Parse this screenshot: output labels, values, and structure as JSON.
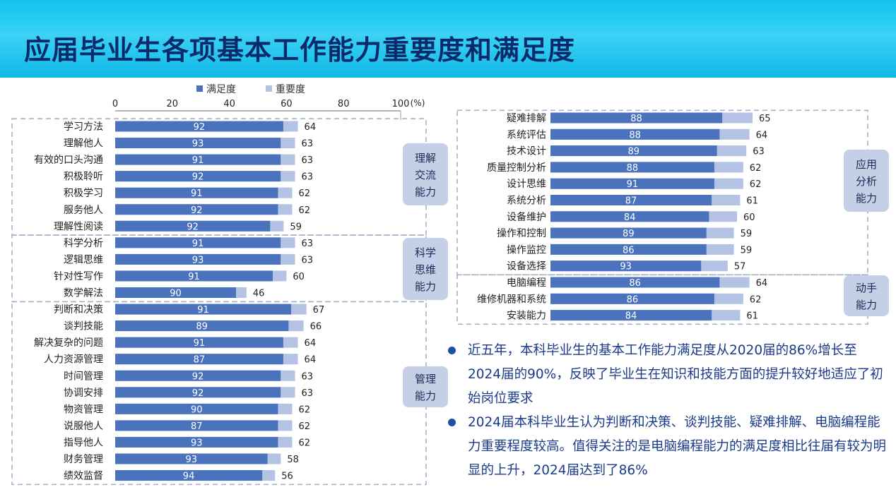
{
  "header": {
    "title": "应届毕业生各项基本工作能力重要度和满足度"
  },
  "legend": {
    "satisfaction": "满足度",
    "importance": "重要度"
  },
  "colors": {
    "satisfaction": "#4a72bd",
    "importance": "#b4c3e3",
    "header": "#1ec8f0",
    "title": "#0b2a6b",
    "text": "#1a3a8a"
  },
  "chart_data": [
    {
      "type": "bar",
      "orientation": "horizontal",
      "x_ticks": [
        "0",
        "20",
        "40",
        "60",
        "80",
        "100"
      ],
      "x_unit": "(%)",
      "xlim": [
        0,
        100
      ],
      "series": [
        {
          "name": "满足度"
        },
        {
          "name": "重要度"
        }
      ],
      "groups": [
        {
          "label": "理解交流能力",
          "items": [
            {
              "name": "学习方法",
              "satisfaction": 92,
              "importance": 64
            },
            {
              "name": "理解他人",
              "satisfaction": 93,
              "importance": 63
            },
            {
              "name": "有效的口头沟通",
              "satisfaction": 91,
              "importance": 63
            },
            {
              "name": "积极聆听",
              "satisfaction": 92,
              "importance": 63
            },
            {
              "name": "积极学习",
              "satisfaction": 91,
              "importance": 62
            },
            {
              "name": "服务他人",
              "satisfaction": 92,
              "importance": 62
            },
            {
              "name": "理解性阅读",
              "satisfaction": 92,
              "importance": 59
            }
          ]
        },
        {
          "label": "科学思维能力",
          "items": [
            {
              "name": "科学分析",
              "satisfaction": 91,
              "importance": 63
            },
            {
              "name": "逻辑思维",
              "satisfaction": 93,
              "importance": 63
            },
            {
              "name": "针对性写作",
              "satisfaction": 91,
              "importance": 60
            },
            {
              "name": "数学解法",
              "satisfaction": 90,
              "importance": 46
            }
          ]
        },
        {
          "label": "管理能力",
          "items": [
            {
              "name": "判断和决策",
              "satisfaction": 91,
              "importance": 67
            },
            {
              "name": "谈判技能",
              "satisfaction": 89,
              "importance": 66
            },
            {
              "name": "解决复杂的问题",
              "satisfaction": 91,
              "importance": 64
            },
            {
              "name": "人力资源管理",
              "satisfaction": 87,
              "importance": 64
            },
            {
              "name": "时间管理",
              "satisfaction": 92,
              "importance": 63
            },
            {
              "name": "协调安排",
              "satisfaction": 92,
              "importance": 63
            },
            {
              "name": "物资管理",
              "satisfaction": 90,
              "importance": 62
            },
            {
              "name": "说服他人",
              "satisfaction": 87,
              "importance": 62
            },
            {
              "name": "指导他人",
              "satisfaction": 93,
              "importance": 62
            },
            {
              "name": "财务管理",
              "satisfaction": 93,
              "importance": 58
            },
            {
              "name": "绩效监督",
              "satisfaction": 94,
              "importance": 56
            }
          ]
        }
      ]
    },
    {
      "type": "bar",
      "orientation": "horizontal",
      "series": [
        {
          "name": "满足度"
        },
        {
          "name": "重要度"
        }
      ],
      "groups": [
        {
          "label": "应用分析能力",
          "items": [
            {
              "name": "疑难排解",
              "satisfaction": 88,
              "importance": 65
            },
            {
              "name": "系统评估",
              "satisfaction": 88,
              "importance": 64
            },
            {
              "name": "技术设计",
              "satisfaction": 89,
              "importance": 63
            },
            {
              "name": "质量控制分析",
              "satisfaction": 88,
              "importance": 62
            },
            {
              "name": "设计思维",
              "satisfaction": 91,
              "importance": 62
            },
            {
              "name": "系统分析",
              "satisfaction": 87,
              "importance": 61
            },
            {
              "name": "设备维护",
              "satisfaction": 84,
              "importance": 60
            },
            {
              "name": "操作和控制",
              "satisfaction": 89,
              "importance": 59
            },
            {
              "name": "操作监控",
              "satisfaction": 86,
              "importance": 59
            },
            {
              "name": "设备选择",
              "satisfaction": 93,
              "importance": 57
            }
          ]
        },
        {
          "label": "动手能力",
          "items": [
            {
              "name": "电脑编程",
              "satisfaction": 86,
              "importance": 64
            },
            {
              "name": "维修机器和系统",
              "satisfaction": 86,
              "importance": 62
            },
            {
              "name": "安装能力",
              "satisfaction": 84,
              "importance": 61
            }
          ]
        }
      ]
    }
  ],
  "group_labels": {
    "g0": [
      "理解",
      "交流",
      "能力"
    ],
    "g1": [
      "科学",
      "思维",
      "能力"
    ],
    "g2": [
      "管理",
      "能力"
    ],
    "g3": [
      "应用",
      "分析",
      "能力"
    ],
    "g4": [
      "动手",
      "能力"
    ]
  },
  "notes": [
    "近五年，本科毕业生的基本工作能力满足度从2020届的86%增长至2024届的90%，反映了毕业生在知识和技能方面的提升较好地适应了初始岗位要求",
    "2024届本科毕业生认为判断和决策、谈判技能、疑难排解、电脑编程能力重要程度较高。值得关注的是电脑编程能力的满足度相比往届有较为明显的上升，2024届达到了86%"
  ]
}
